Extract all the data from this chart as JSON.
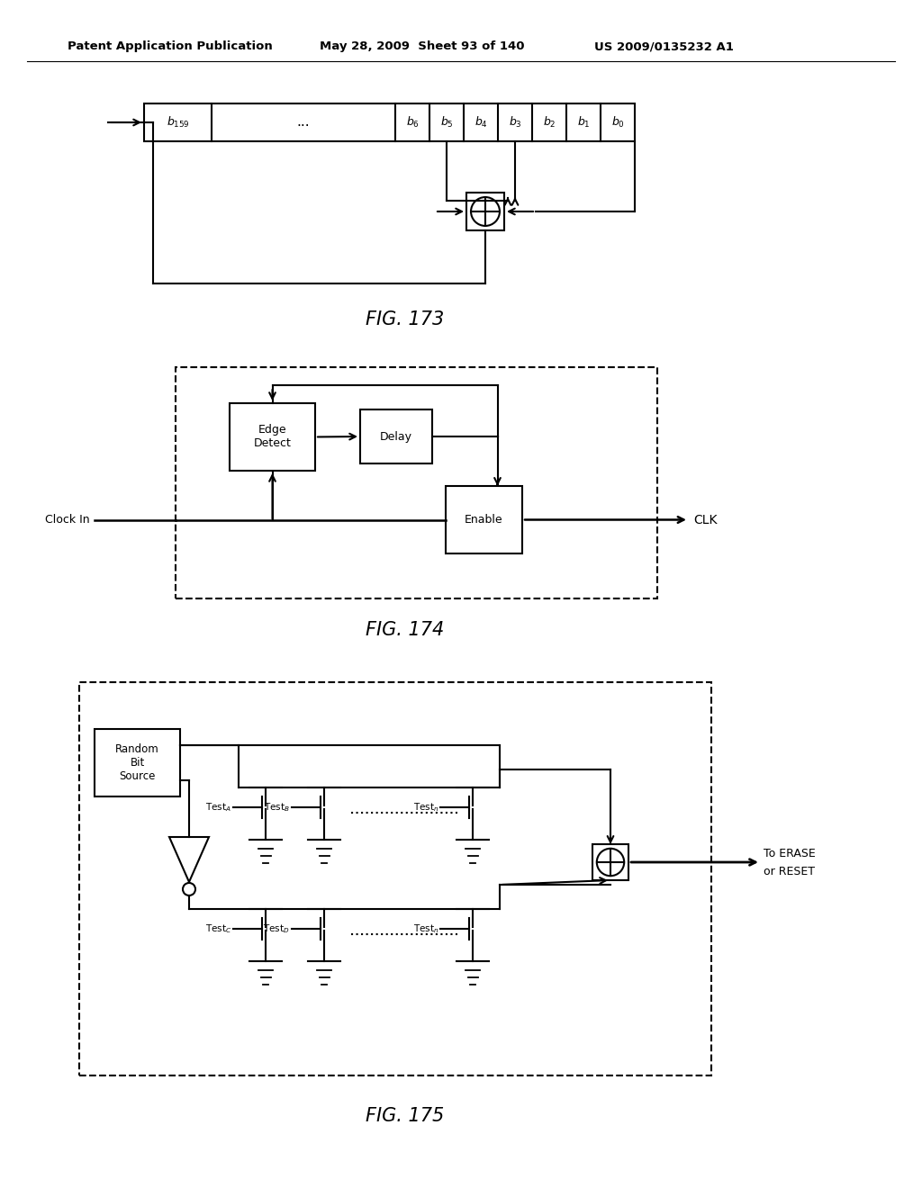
{
  "header_left": "Patent Application Publication",
  "header_middle": "May 28, 2009  Sheet 93 of 140",
  "header_right": "US 2009/0135232 A1",
  "fig173_caption": "FIG. 173",
  "fig174_caption": "FIG. 174",
  "fig175_caption": "FIG. 175",
  "bg_color": "#ffffff",
  "line_color": "#000000"
}
